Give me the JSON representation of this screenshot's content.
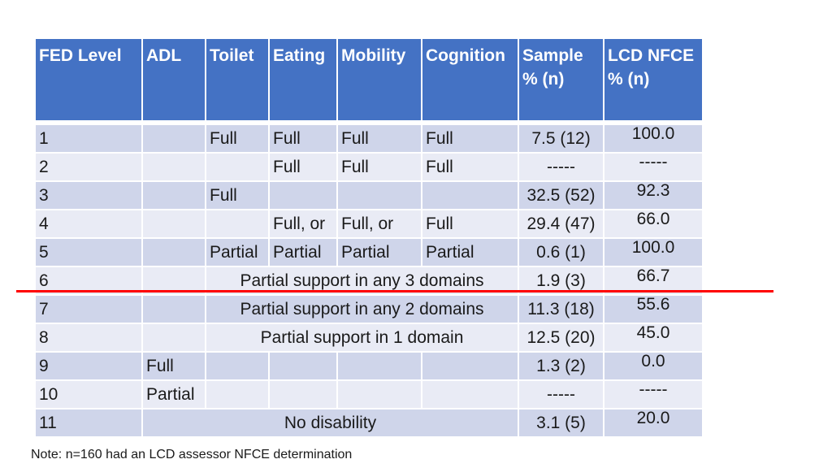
{
  "headers": [
    "FED Level",
    "ADL",
    "Toilet",
    "Eating",
    "Mobility",
    "Cognition",
    "Sample\n% (n)",
    "LCD NFCE\n% (n)"
  ],
  "rows": [
    {
      "level": "1",
      "adl": "",
      "toilet": "Full",
      "eating": "Full",
      "mobility": "Full",
      "cognition": "Full",
      "sample": "7.5 (12)",
      "lcd": "100.0"
    },
    {
      "level": "2",
      "adl": "",
      "toilet": "",
      "eating": "Full",
      "mobility": "Full",
      "cognition": "Full",
      "sample": "-----",
      "lcd": "-----"
    },
    {
      "level": "3",
      "adl": "",
      "toilet": "Full",
      "eating": "",
      "mobility": "",
      "cognition": "",
      "sample": "32.5 (52)",
      "lcd": "92.3"
    },
    {
      "level": "4",
      "adl": "",
      "toilet": "",
      "eating": "Full, or",
      "mobility": "Full, or",
      "cognition": "Full",
      "sample": "29.4 (47)",
      "lcd": "66.0"
    },
    {
      "level": "5",
      "adl": "",
      "toilet": "Partial",
      "eating": "Partial",
      "mobility": "Partial",
      "cognition": "Partial",
      "sample": "0.6  (1)",
      "lcd": "100.0"
    },
    {
      "level": "6",
      "adl": "",
      "span": "Partial support in any 3 domains",
      "sample": "1.9  (3)",
      "lcd": "66.7"
    },
    {
      "level": "7",
      "adl": "",
      "span": "Partial support in any 2 domains",
      "sample": "11.3 (18)",
      "lcd": "55.6"
    },
    {
      "level": "8",
      "adl": "",
      "span": "Partial support in 1 domain",
      "sample": "12.5 (20)",
      "lcd": "45.0"
    },
    {
      "level": "9",
      "adl": "Full",
      "toilet": "",
      "eating": "",
      "mobility": "",
      "cognition": "",
      "sample": "1.3  (2)",
      "lcd": "0.0"
    },
    {
      "level": "10",
      "adl": "Partial",
      "toilet": "",
      "eating": "",
      "mobility": "",
      "cognition": "",
      "sample": "-----",
      "lcd": "-----"
    },
    {
      "level": "11",
      "span_full": "No disability",
      "sample": "3.1  (5)",
      "lcd": "20.0"
    }
  ],
  "note": "Note: n=160 had an LCD assessor NFCE determination",
  "colors": {
    "header": "#4472c4",
    "row_odd": "#cfd5ea",
    "row_even": "#e9ebf5",
    "divider": "#ff0000"
  }
}
